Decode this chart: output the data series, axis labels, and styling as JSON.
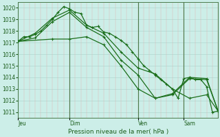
{
  "background_color": "#cceee8",
  "grid_color_h": "#b0d8d0",
  "grid_color_v": "#e0b0b0",
  "line_color": "#1a6e1a",
  "xlabel": "Pression niveau de la mer( hPa )",
  "ylim": [
    1010.5,
    1020.5
  ],
  "yticks": [
    1011,
    1012,
    1013,
    1014,
    1015,
    1016,
    1017,
    1018,
    1019,
    1020
  ],
  "day_labels": [
    "Jeu",
    "Dim",
    "Ven",
    "Sam"
  ],
  "day_positions": [
    0,
    9,
    21,
    29
  ],
  "total_points": 36,
  "s1_x": [
    0,
    1,
    2,
    3,
    4,
    5,
    6,
    7,
    8,
    9,
    10,
    11,
    12,
    13,
    14,
    15,
    16,
    17,
    18,
    19,
    20,
    21,
    22,
    23,
    24,
    25,
    26,
    27,
    28,
    29,
    30,
    31,
    32,
    33,
    34,
    35
  ],
  "s1_y": [
    1017.1,
    1017.5,
    1017.5,
    1017.7,
    1018.0,
    1018.5,
    1019.0,
    1019.6,
    1020.1,
    1019.9,
    1019.6,
    1019.5,
    1018.5,
    1018.3,
    1018.4,
    1017.9,
    1017.8,
    1017.5,
    1017.2,
    1016.8,
    1016.2,
    1015.6,
    1015.0,
    1014.6,
    1014.2,
    1013.8,
    1013.4,
    1013.0,
    1012.2,
    1013.9,
    1014.0,
    1013.8,
    1013.8,
    1013.2,
    1011.0,
    1011.1
  ],
  "s2_x": [
    0,
    3,
    6,
    9,
    12,
    15,
    18,
    21,
    24,
    27,
    30,
    33,
    35
  ],
  "s2_y": [
    1017.1,
    1017.8,
    1019.1,
    1019.8,
    1018.5,
    1017.8,
    1016.2,
    1014.8,
    1014.3,
    1013.0,
    1012.2,
    1012.5,
    1011.1
  ],
  "s3_x": [
    0,
    3,
    6,
    9,
    12,
    15,
    18,
    21,
    24,
    27,
    30,
    33,
    35
  ],
  "s3_y": [
    1017.1,
    1017.4,
    1018.8,
    1019.6,
    1018.3,
    1017.5,
    1015.5,
    1014.2,
    1012.2,
    1012.5,
    1013.9,
    1013.8,
    1011.1
  ],
  "s4_x": [
    0,
    6,
    9,
    12,
    15,
    18,
    21,
    24,
    27,
    30,
    33,
    35
  ],
  "s4_y": [
    1017.1,
    1017.3,
    1017.3,
    1017.5,
    1016.8,
    1015.0,
    1013.0,
    1012.2,
    1012.6,
    1014.0,
    1013.9,
    1011.1
  ]
}
